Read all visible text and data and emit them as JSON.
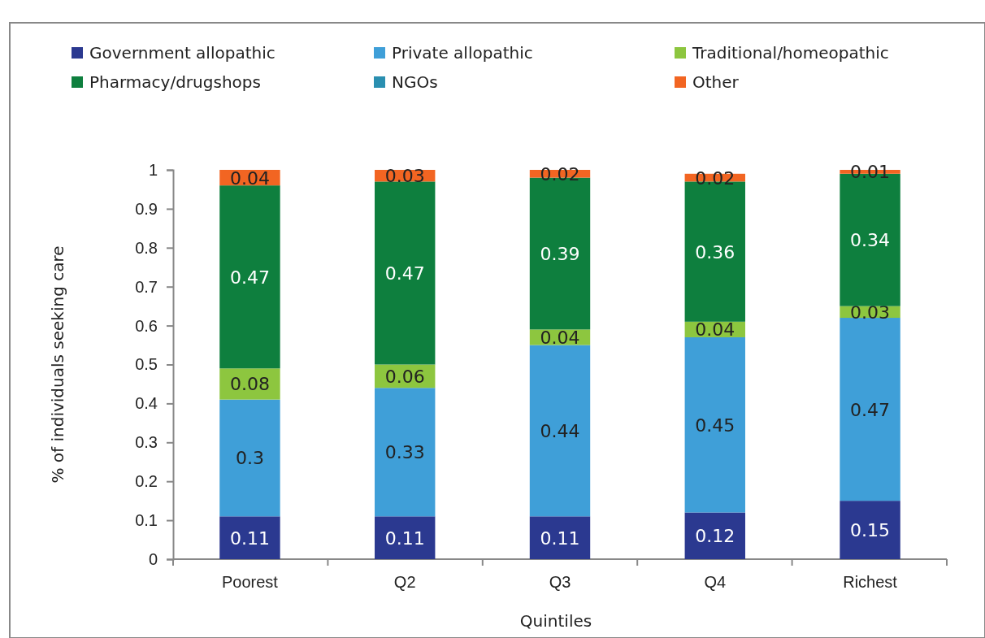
{
  "chart_data": {
    "type": "bar",
    "stacked": true,
    "xlabel": "Quintiles",
    "ylabel": "% of individuals seeking care",
    "categories": [
      "Poorest",
      "Q2",
      "Q3",
      "Q4",
      "Richest"
    ],
    "ylim": [
      0,
      1
    ],
    "yticks": [
      0,
      0.1,
      0.2,
      0.3,
      0.4,
      0.5,
      0.6,
      0.7,
      0.8,
      0.9,
      1
    ],
    "grid": false,
    "legend": "top",
    "series": [
      {
        "name": "Government allopathic",
        "color": "#2b3990",
        "values": [
          0.11,
          0.11,
          0.11,
          0.12,
          0.15
        ],
        "value_labels": [
          "0.11",
          "0.11",
          "0.11",
          "0.12",
          "0.15"
        ]
      },
      {
        "name": "Private allopathic",
        "color": "#3f9fd8",
        "values": [
          0.3,
          0.33,
          0.44,
          0.45,
          0.47
        ],
        "value_labels": [
          "0.3",
          "0.33",
          "0.44",
          "0.45",
          "0.47"
        ]
      },
      {
        "name": "Traditional/homeopathic",
        "color": "#8dc63f",
        "values": [
          0.08,
          0.06,
          0.04,
          0.04,
          0.03
        ],
        "value_labels": [
          "0.08",
          "0.06",
          "0.04",
          "0.04",
          "0.03"
        ]
      },
      {
        "name": "Pharmacy/drugshops",
        "color": "#0e7f3e",
        "values": [
          0.47,
          0.47,
          0.39,
          0.36,
          0.34
        ],
        "value_labels": [
          "0.47",
          "0.47",
          "0.39",
          "0.36",
          "0.34"
        ]
      },
      {
        "name": "NGOs",
        "color": "#2a8fb0",
        "values": [
          0,
          0,
          0,
          0,
          0
        ],
        "value_labels": [
          null,
          null,
          null,
          null,
          null
        ]
      },
      {
        "name": "Other",
        "color": "#f26522",
        "values": [
          0.04,
          0.03,
          0.02,
          0.02,
          0.01
        ],
        "value_labels": [
          "0.04",
          "0.03",
          "0.02",
          "0.02",
          "0.01"
        ]
      }
    ]
  }
}
